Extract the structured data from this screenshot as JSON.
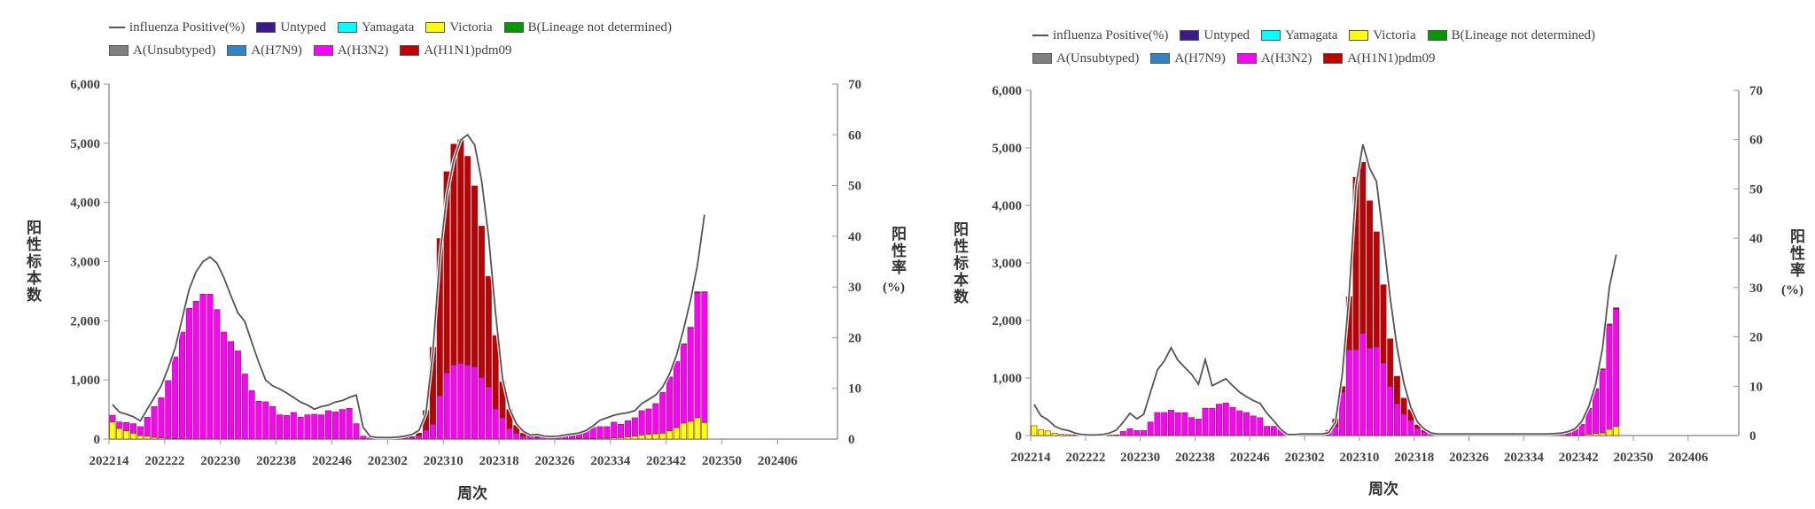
{
  "legend": {
    "row1": [
      {
        "label": "influenza Positive(%)",
        "kind": "line",
        "color": "#555555"
      },
      {
        "label": "Untyped",
        "kind": "box",
        "color": "#3a1a8c"
      },
      {
        "label": "Yamagata",
        "kind": "box",
        "color": "#00ffff"
      },
      {
        "label": "Victoria",
        "kind": "box",
        "color": "#ffff00"
      },
      {
        "label": "B(Lineage not determined)",
        "kind": "box",
        "color": "#009900"
      }
    ],
    "row2": [
      {
        "label": "A(Unsubtyped)",
        "kind": "box",
        "color": "#7f7f7f"
      },
      {
        "label": "A(H7N9)",
        "kind": "box",
        "color": "#2e86c8"
      },
      {
        "label": "A(H3N2)",
        "kind": "box",
        "color": "#ff00ff"
      },
      {
        "label": "A(H1N1)pdm09",
        "kind": "box",
        "color": "#c00000"
      }
    ]
  },
  "chart_data": [
    {
      "type": "bar",
      "stacked": true,
      "xlabel": "周次",
      "ylabel": "阳性标本数",
      "y2label": "阳性率",
      "y2label_unit": "(%)",
      "ylim": [
        0,
        6000
      ],
      "y2lim": [
        0,
        70
      ],
      "yticks": [
        "0",
        "1,000",
        "2,000",
        "3,000",
        "4,000",
        "5,000",
        "6,000"
      ],
      "y2ticks": [
        "0",
        "10",
        "20",
        "30",
        "40",
        "50",
        "60",
        "70"
      ],
      "xticks": [
        "202214",
        "202222",
        "202230",
        "202238",
        "202246",
        "202302",
        "202310",
        "202318",
        "202326",
        "202334",
        "202342",
        "202350",
        "202406"
      ],
      "grid": false,
      "legend_position": "top-left",
      "categories": [
        "202214",
        "202215",
        "202216",
        "202217",
        "202218",
        "202219",
        "202220",
        "202221",
        "202222",
        "202223",
        "202224",
        "202225",
        "202226",
        "202227",
        "202228",
        "202229",
        "202230",
        "202231",
        "202232",
        "202233",
        "202234",
        "202235",
        "202236",
        "202237",
        "202238",
        "202239",
        "202240",
        "202241",
        "202242",
        "202243",
        "202244",
        "202245",
        "202246",
        "202247",
        "202248",
        "202249",
        "202250",
        "202251",
        "202252",
        "202301",
        "202302",
        "202303",
        "202304",
        "202305",
        "202306",
        "202307",
        "202308",
        "202309",
        "202310",
        "202311",
        "202312",
        "202313",
        "202314",
        "202315",
        "202316",
        "202317",
        "202318",
        "202319",
        "202320",
        "202321",
        "202322",
        "202323",
        "202324",
        "202325",
        "202326",
        "202327",
        "202328",
        "202329",
        "202330",
        "202331",
        "202332",
        "202333",
        "202334",
        "202335",
        "202336",
        "202337",
        "202338",
        "202339",
        "202340",
        "202341",
        "202342",
        "202343",
        "202344",
        "202345",
        "202346",
        "202347"
      ],
      "series": [
        {
          "name": "Victoria",
          "color": "#ffff00",
          "values": [
            290,
            180,
            140,
            100,
            60,
            50,
            30,
            20,
            15,
            10,
            0,
            0,
            0,
            0,
            0,
            0,
            0,
            0,
            0,
            0,
            0,
            0,
            0,
            0,
            0,
            0,
            0,
            0,
            0,
            0,
            0,
            0,
            0,
            0,
            0,
            0,
            0,
            0,
            0,
            0,
            0,
            0,
            0,
            0,
            0,
            0,
            0,
            0,
            0,
            0,
            0,
            0,
            0,
            0,
            0,
            0,
            0,
            0,
            0,
            0,
            0,
            0,
            0,
            0,
            5,
            5,
            5,
            10,
            10,
            10,
            15,
            15,
            20,
            25,
            40,
            50,
            70,
            80,
            90,
            100,
            140,
            195,
            270,
            300,
            360,
            280
          ]
        },
        {
          "name": "A(H3N2)",
          "color": "#ff00ff",
          "values": [
            113,
            110,
            140,
            160,
            150,
            320,
            520,
            680,
            975,
            1380,
            1810,
            2210,
            2330,
            2450,
            2450,
            2190,
            1810,
            1650,
            1490,
            1100,
            820,
            640,
            630,
            550,
            410,
            400,
            450,
            370,
            410,
            420,
            410,
            480,
            460,
            500,
            520,
            260,
            50,
            20,
            15,
            15,
            15,
            15,
            20,
            30,
            60,
            150,
            250,
            730,
            1120,
            1250,
            1280,
            1250,
            1220,
            1040,
            880,
            510,
            360,
            180,
            100,
            50,
            40,
            30,
            25,
            25,
            35,
            55,
            75,
            100,
            140,
            185,
            195,
            195,
            265,
            225,
            270,
            310,
            410,
            430,
            510,
            690,
            910,
            1115,
            1330,
            1580,
            2110,
            2200
          ]
        },
        {
          "name": "A(H1N1)pdm09",
          "color": "#c00000",
          "values": [
            0,
            0,
            0,
            0,
            0,
            0,
            0,
            0,
            0,
            0,
            0,
            0,
            0,
            0,
            0,
            0,
            0,
            0,
            0,
            0,
            0,
            0,
            0,
            0,
            0,
            0,
            0,
            0,
            0,
            0,
            0,
            0,
            0,
            0,
            0,
            0,
            0,
            0,
            0,
            0,
            0,
            0,
            5,
            10,
            40,
            330,
            1300,
            2660,
            3400,
            3735,
            3780,
            3530,
            3060,
            2560,
            1870,
            1240,
            610,
            320,
            130,
            50,
            20,
            10,
            0,
            0,
            0,
            0,
            0,
            0,
            0,
            0,
            0,
            0,
            0,
            0,
            0,
            0,
            0,
            0,
            0,
            0,
            0,
            0,
            10,
            10,
            20,
            10
          ]
        }
      ],
      "line": {
        "name": "influenza Positive(%)",
        "axis": "right",
        "color": "#555555",
        "values": [
          6.8,
          5.3,
          4.9,
          4.4,
          3.6,
          5.9,
          8.2,
          10.5,
          14,
          18,
          23.7,
          29.5,
          33,
          35,
          35.9,
          34.7,
          31.8,
          28.3,
          24.9,
          23.2,
          19.1,
          15.1,
          11.6,
          10.5,
          9.9,
          9.1,
          8.2,
          7.3,
          6.7,
          5.9,
          6.4,
          6.7,
          7.3,
          7.6,
          8.2,
          8.7,
          2.3,
          0.5,
          0.3,
          0.3,
          0.3,
          0.4,
          0.6,
          0.9,
          1.7,
          5,
          17,
          36,
          48,
          55,
          59,
          60,
          58,
          51,
          40,
          25,
          12,
          6,
          3,
          1.5,
          0.8,
          0.9,
          0.6,
          0.5,
          0.6,
          0.8,
          1.0,
          1.2,
          1.7,
          2.6,
          3.7,
          4.2,
          4.7,
          5.0,
          5.2,
          5.6,
          7.0,
          7.8,
          8.7,
          10.3,
          12.9,
          16.6,
          21.6,
          27.4,
          34.3,
          44.2
        ]
      }
    },
    {
      "type": "bar",
      "stacked": true,
      "xlabel": "周次",
      "ylabel": "阳性标本数",
      "y2label": "阳性率",
      "y2label_unit": "(%)",
      "ylim": [
        0,
        6000
      ],
      "y2lim": [
        0,
        70
      ],
      "yticks": [
        "0",
        "1,000",
        "2,000",
        "3,000",
        "4,000",
        "5,000",
        "6,000"
      ],
      "y2ticks": [
        "0",
        "10",
        "20",
        "30",
        "40",
        "50",
        "60",
        "70"
      ],
      "xticks": [
        "202214",
        "202222",
        "202230",
        "202238",
        "202246",
        "202302",
        "202310",
        "202318",
        "202326",
        "202334",
        "202342",
        "202350",
        "202406"
      ],
      "grid": false,
      "legend_position": "top-left",
      "categories": [
        "202214",
        "202215",
        "202216",
        "202217",
        "202218",
        "202219",
        "202220",
        "202221",
        "202222",
        "202223",
        "202224",
        "202225",
        "202226",
        "202227",
        "202228",
        "202229",
        "202230",
        "202231",
        "202232",
        "202233",
        "202234",
        "202235",
        "202236",
        "202237",
        "202238",
        "202239",
        "202240",
        "202241",
        "202242",
        "202243",
        "202244",
        "202245",
        "202246",
        "202247",
        "202248",
        "202249",
        "202250",
        "202251",
        "202252",
        "202301",
        "202302",
        "202303",
        "202304",
        "202305",
        "202306",
        "202307",
        "202308",
        "202309",
        "202310",
        "202311",
        "202312",
        "202313",
        "202314",
        "202315",
        "202316",
        "202317",
        "202318",
        "202319",
        "202320",
        "202321",
        "202322",
        "202323",
        "202324",
        "202325",
        "202326",
        "202327",
        "202328",
        "202329",
        "202330",
        "202331",
        "202332",
        "202333",
        "202334",
        "202335",
        "202336",
        "202337",
        "202338",
        "202339",
        "202340",
        "202341",
        "202342",
        "202343",
        "202344",
        "202345",
        "202346",
        "202347"
      ],
      "series": [
        {
          "name": "Victoria",
          "color": "#ffff00",
          "values": [
            170,
            100,
            80,
            40,
            20,
            15,
            10,
            5,
            0,
            0,
            0,
            0,
            0,
            0,
            0,
            0,
            0,
            0,
            0,
            0,
            0,
            0,
            0,
            0,
            0,
            0,
            0,
            0,
            0,
            0,
            0,
            0,
            0,
            0,
            0,
            0,
            0,
            0,
            0,
            0,
            0,
            0,
            0,
            0,
            0,
            0,
            0,
            0,
            0,
            0,
            0,
            0,
            0,
            0,
            0,
            0,
            0,
            0,
            0,
            0,
            0,
            0,
            0,
            0,
            0,
            0,
            0,
            0,
            0,
            0,
            0,
            0,
            0,
            0,
            0,
            0,
            0,
            0,
            5,
            5,
            10,
            25,
            35,
            45,
            110,
            160
          ]
        },
        {
          "name": "A(H3N2)",
          "color": "#ff00ff",
          "values": [
            0,
            0,
            0,
            0,
            0,
            0,
            0,
            5,
            5,
            5,
            5,
            5,
            10,
            70,
            120,
            86,
            86,
            235,
            400,
            400,
            440,
            398,
            398,
            313,
            286,
            475,
            475,
            545,
            565,
            490,
            430,
            400,
            340,
            310,
            160,
            160,
            100,
            10,
            10,
            10,
            15,
            20,
            25,
            70,
            160,
            750,
            1490,
            1490,
            1775,
            1520,
            1540,
            1260,
            850,
            550,
            370,
            260,
            130,
            60,
            30,
            20,
            15,
            15,
            15,
            15,
            15,
            15,
            15,
            15,
            15,
            15,
            15,
            15,
            15,
            15,
            15,
            15,
            20,
            30,
            50,
            100,
            185,
            450,
            770,
            1100,
            1810,
            2040
          ]
        },
        {
          "name": "A(H1N1)pdm09",
          "color": "#c00000",
          "values": [
            0,
            0,
            0,
            0,
            0,
            0,
            0,
            0,
            0,
            0,
            0,
            0,
            0,
            0,
            0,
            0,
            0,
            0,
            0,
            0,
            0,
            0,
            0,
            0,
            0,
            0,
            0,
            0,
            0,
            0,
            0,
            0,
            0,
            0,
            0,
            0,
            0,
            0,
            0,
            0,
            0,
            0,
            0,
            20,
            130,
            100,
            925,
            3000,
            2975,
            2560,
            2000,
            1360,
            830,
            480,
            280,
            190,
            55,
            30,
            10,
            5,
            0,
            0,
            0,
            0,
            0,
            0,
            0,
            0,
            0,
            0,
            0,
            0,
            0,
            0,
            0,
            0,
            0,
            0,
            0,
            0,
            0,
            0,
            10,
            15,
            20,
            20
          ]
        }
      ],
      "line": {
        "name": "influenza Positive(%)",
        "axis": "right",
        "color": "#555555",
        "values": [
          6.3,
          4.0,
          3.2,
          1.9,
          1.3,
          1.0,
          0.5,
          0.2,
          0.1,
          0.1,
          0.2,
          0.5,
          1.1,
          2.7,
          4.5,
          3.4,
          4.3,
          8.8,
          13.3,
          15.1,
          17.8,
          15.3,
          13.8,
          12.4,
          10.4,
          15.4,
          10.1,
          10.8,
          11.5,
          10.1,
          8.8,
          7.9,
          7.1,
          6.5,
          4.5,
          3.0,
          1.3,
          0.2,
          0.2,
          0.3,
          0.3,
          0.3,
          0.3,
          0.6,
          2.7,
          12.4,
          28.5,
          50.6,
          59,
          54.2,
          51.5,
          39.9,
          27.9,
          17.8,
          10.6,
          5.7,
          2.7,
          1.3,
          0.5,
          0.3,
          0.3,
          0.3,
          0.3,
          0.3,
          0.3,
          0.3,
          0.3,
          0.3,
          0.3,
          0.3,
          0.3,
          0.3,
          0.3,
          0.3,
          0.3,
          0.3,
          0.4,
          0.5,
          0.8,
          1.4,
          2.9,
          5.9,
          10.4,
          17.6,
          30.1,
          36.7
        ]
      }
    }
  ]
}
